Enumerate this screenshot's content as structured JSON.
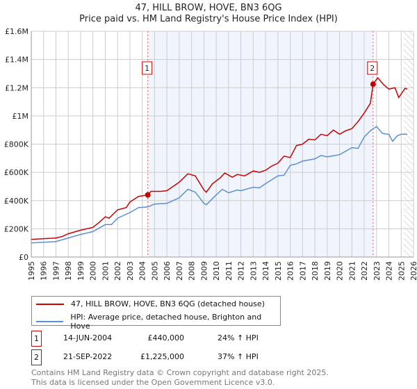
{
  "chart_data": {
    "type": "line",
    "title": "47, HILL BROW, HOVE, BN3 6QG",
    "subtitle": "Price paid vs. HM Land Registry's House Price Index (HPI)",
    "xlim": [
      1995,
      2026
    ],
    "ylim": [
      0,
      1600000
    ],
    "x_ticks": [
      "1995",
      "1996",
      "1997",
      "1998",
      "1999",
      "2000",
      "2001",
      "2002",
      "2003",
      "2004",
      "2005",
      "2006",
      "2007",
      "2008",
      "2009",
      "2010",
      "2011",
      "2012",
      "2013",
      "2014",
      "2015",
      "2016",
      "2017",
      "2018",
      "2019",
      "2020",
      "2021",
      "2022",
      "2023",
      "2024",
      "2025",
      "2026"
    ],
    "y_ticks": [
      {
        "v": 0,
        "label": "£0"
      },
      {
        "v": 200000,
        "label": "£200K"
      },
      {
        "v": 400000,
        "label": "£400K"
      },
      {
        "v": 600000,
        "label": "£600K"
      },
      {
        "v": 800000,
        "label": "£800K"
      },
      {
        "v": 1000000,
        "label": "£1M"
      },
      {
        "v": 1200000,
        "label": "£1.2M"
      },
      {
        "v": 1400000,
        "label": "£1.4M"
      },
      {
        "v": 1600000,
        "label": "£1.6M"
      }
    ],
    "grid": true,
    "shaded_range": [
      2004.45,
      2022.72
    ],
    "forecast_hatch_from": 2025.2,
    "series": [
      {
        "name": "47, HILL BROW, HOVE, BN3 6QG (detached house)",
        "color": "#cc0000",
        "x": [
          1995,
          1996,
          1997,
          1997.5,
          1998,
          1999,
          2000,
          2000.5,
          2001,
          2001.3,
          2002,
          2002.7,
          2003,
          2003.7,
          2004.45,
          2004.7,
          2005.5,
          2006,
          2006.5,
          2007,
          2007.7,
          2008.3,
          2009,
          2009.2,
          2009.7,
          2010.3,
          2010.7,
          2011.3,
          2011.7,
          2012.3,
          2013,
          2013.5,
          2014,
          2014.5,
          2015,
          2015.5,
          2016,
          2016.5,
          2017,
          2017.5,
          2018,
          2018.5,
          2019,
          2019.5,
          2020,
          2020.5,
          2021,
          2021.5,
          2022,
          2022.5,
          2022.72,
          2023.1,
          2023.6,
          2024,
          2024.5,
          2024.8,
          2025.3,
          2025.5
        ],
        "y": [
          125000,
          130000,
          135000,
          145000,
          165000,
          190000,
          210000,
          245000,
          285000,
          275000,
          335000,
          350000,
          390000,
          430000,
          440000,
          465000,
          465000,
          470000,
          500000,
          530000,
          590000,
          575000,
          475000,
          460000,
          520000,
          560000,
          595000,
          565000,
          585000,
          575000,
          610000,
          600000,
          615000,
          645000,
          665000,
          715000,
          705000,
          790000,
          800000,
          835000,
          830000,
          870000,
          860000,
          900000,
          870000,
          895000,
          910000,
          960000,
          1020000,
          1090000,
          1225000,
          1270000,
          1220000,
          1190000,
          1200000,
          1130000,
          1195000,
          1190000
        ]
      },
      {
        "name": "HPI: Average price, detached house, Brighton and Hove",
        "color": "#5b8fd4",
        "x": [
          1995,
          1996,
          1997,
          1998,
          1999,
          2000,
          2001,
          2001.5,
          2002,
          2003,
          2003.7,
          2004.45,
          2005,
          2006,
          2007,
          2007.7,
          2008.3,
          2009,
          2009.2,
          2010,
          2010.5,
          2011,
          2011.7,
          2012,
          2013,
          2013.5,
          2014,
          2015,
          2015.5,
          2016,
          2016.5,
          2017,
          2018,
          2018.5,
          2019,
          2020,
          2021,
          2021.5,
          2022,
          2022.5,
          2023,
          2023.5,
          2024,
          2024.3,
          2024.7,
          2025,
          2025.5
        ],
        "y": [
          100000,
          105000,
          110000,
          135000,
          160000,
          180000,
          230000,
          230000,
          275000,
          315000,
          350000,
          355000,
          375000,
          380000,
          420000,
          480000,
          460000,
          380000,
          370000,
          440000,
          480000,
          455000,
          475000,
          470000,
          495000,
          490000,
          520000,
          575000,
          580000,
          650000,
          660000,
          680000,
          695000,
          720000,
          710000,
          725000,
          775000,
          770000,
          850000,
          895000,
          925000,
          875000,
          870000,
          820000,
          860000,
          870000,
          870000
        ]
      }
    ],
    "annotations": [
      {
        "label": "1",
        "x": 2004.45,
        "y": 440000
      },
      {
        "label": "2",
        "x": 2022.72,
        "y": 1225000
      }
    ]
  },
  "legend": {
    "red": "47, HILL BROW, HOVE, BN3 6QG (detached house)",
    "blue": "HPI: Average price, detached house, Brighton and Hove"
  },
  "transactions": [
    {
      "num": "1",
      "date": "14-JUN-2004",
      "price": "£440,000",
      "hpi": "24% ↑ HPI"
    },
    {
      "num": "2",
      "date": "21-SEP-2022",
      "price": "£1,225,000",
      "hpi": "37% ↑ HPI"
    }
  ],
  "footer": {
    "line1": "Contains HM Land Registry data © Crown copyright and database right 2025.",
    "line2": "This data is licensed under the Open Government Licence v3.0."
  }
}
